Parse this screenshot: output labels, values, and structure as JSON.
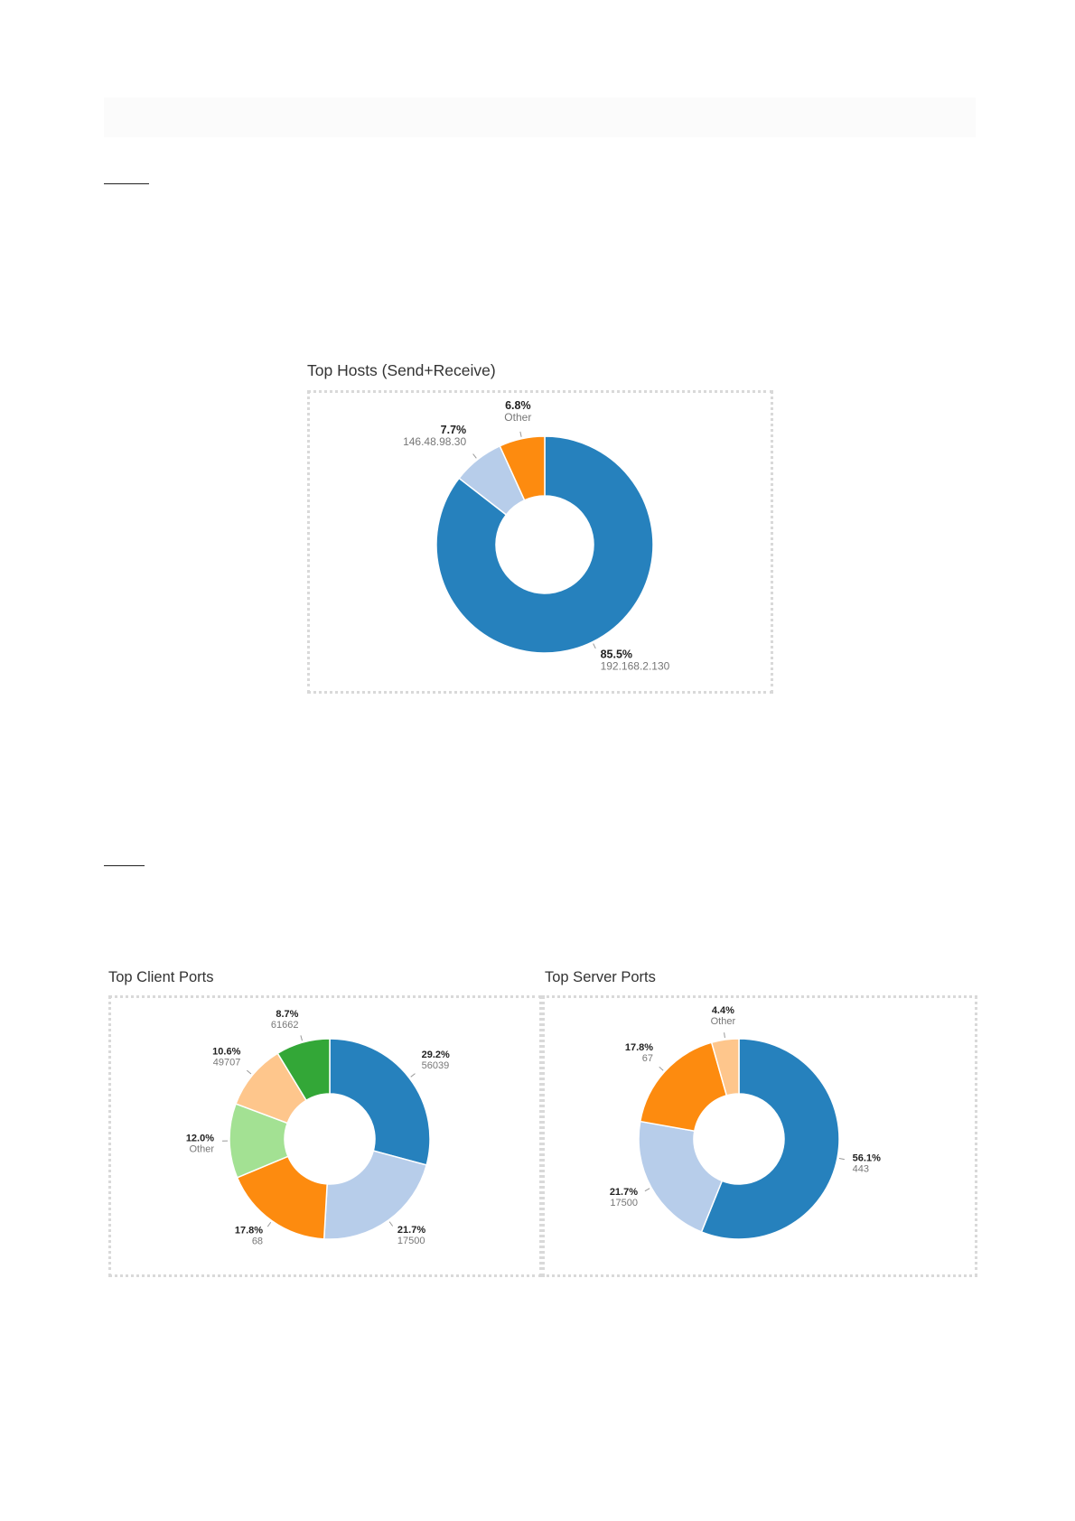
{
  "chart_data": [
    {
      "id": "hosts",
      "type": "pie",
      "title": "Top Hosts (Send+Receive)",
      "slices": [
        {
          "label": "192.168.2.130",
          "pct_text": "85.5%",
          "value": 85.5,
          "color": "#2681bd"
        },
        {
          "label": "146.48.98.30",
          "pct_text": "7.7%",
          "value": 7.7,
          "color": "#b7cdea"
        },
        {
          "label": "Other",
          "pct_text": "6.8%",
          "value": 6.8,
          "color": "#fd8b0f"
        }
      ]
    },
    {
      "id": "client-ports",
      "type": "pie",
      "title": "Top Client Ports",
      "slices": [
        {
          "label": "56039",
          "pct_text": "29.2%",
          "value": 29.2,
          "color": "#2681bd"
        },
        {
          "label": "17500",
          "pct_text": "21.7%",
          "value": 21.7,
          "color": "#b7cdea"
        },
        {
          "label": "68",
          "pct_text": "17.8%",
          "value": 17.8,
          "color": "#fd8b0f"
        },
        {
          "label": "Other",
          "pct_text": "12.0%",
          "value": 12.0,
          "color": "#a3e193"
        },
        {
          "label": "49707",
          "pct_text": "10.6%",
          "value": 10.6,
          "color": "#fec68c"
        },
        {
          "label": "61662",
          "pct_text": "8.7%",
          "value": 8.7,
          "color": "#33a737"
        }
      ]
    },
    {
      "id": "server-ports",
      "type": "pie",
      "title": "Top Server Ports",
      "slices": [
        {
          "label": "443",
          "pct_text": "56.1%",
          "value": 56.1,
          "color": "#2681bd"
        },
        {
          "label": "17500",
          "pct_text": "21.7%",
          "value": 21.7,
          "color": "#b7cdea"
        },
        {
          "label": "67",
          "pct_text": "17.8%",
          "value": 17.8,
          "color": "#fd8b0f"
        },
        {
          "label": "Other",
          "pct_text": "4.4%",
          "value": 4.4,
          "color": "#fec68c"
        }
      ]
    }
  ]
}
